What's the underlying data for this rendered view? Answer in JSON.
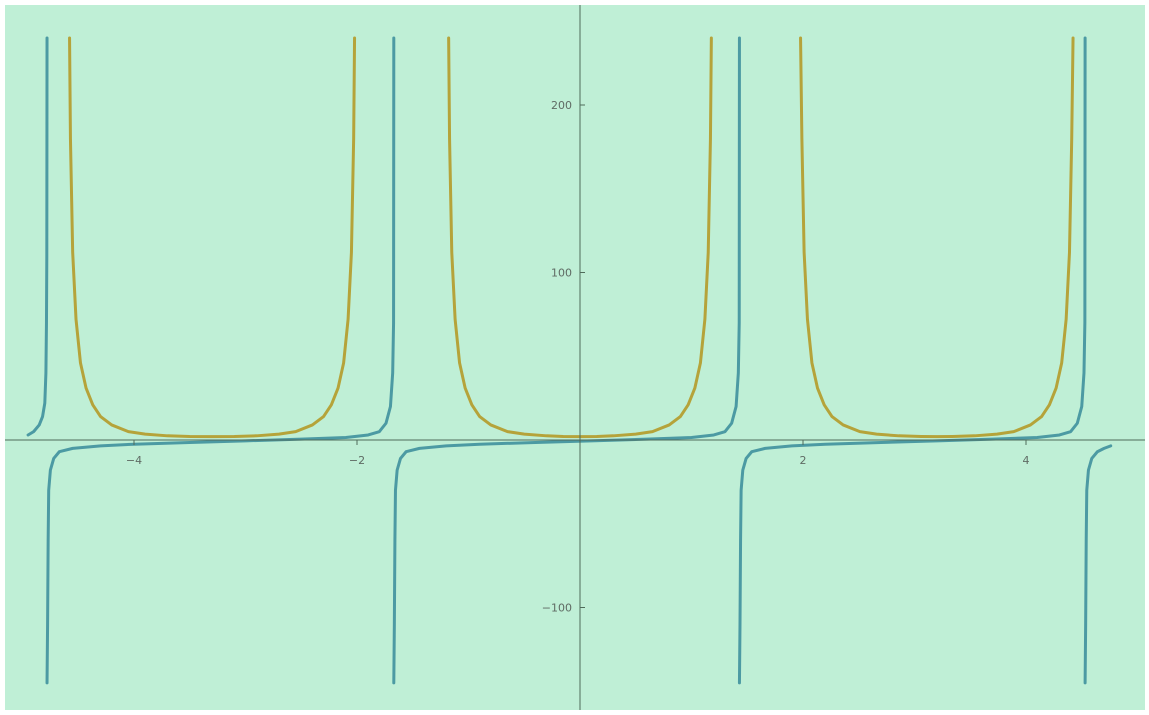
{
  "chart_data": {
    "type": "line",
    "title": "",
    "xlabel": "",
    "ylabel": "",
    "xlim": [
      -5.0,
      5.0
    ],
    "ylim": [
      -145,
      245
    ],
    "x_ticks": [
      -4,
      -2,
      2,
      4
    ],
    "y_ticks": [
      -100,
      100,
      200
    ],
    "tick_labels_x": [
      "−4",
      "−2",
      "2",
      "4"
    ],
    "tick_labels_y": [
      "−100",
      "100",
      "200"
    ],
    "grid": false,
    "legend": "none",
    "background_color": "#bfefd6",
    "series": [
      {
        "color": "#b5a33a",
        "points": [
          [
            -4.578,
            240
          ],
          [
            -4.57,
            180
          ],
          [
            -4.55,
            112
          ],
          [
            -4.52,
            72
          ],
          [
            -4.48,
            46
          ],
          [
            -4.43,
            31
          ],
          [
            -4.37,
            21
          ],
          [
            -4.3,
            14
          ],
          [
            -4.2,
            9
          ],
          [
            -4.05,
            5
          ],
          [
            -3.9,
            3.5
          ],
          [
            -3.7,
            2.5
          ],
          [
            -3.5,
            2.1
          ],
          [
            -3.3,
            2.0
          ],
          [
            -3.1,
            2.1
          ],
          [
            -2.9,
            2.5
          ],
          [
            -2.7,
            3.5
          ],
          [
            -2.55,
            5
          ],
          [
            -2.4,
            9
          ],
          [
            -2.3,
            14
          ],
          [
            -2.23,
            21
          ],
          [
            -2.17,
            31
          ],
          [
            -2.12,
            46
          ],
          [
            -2.08,
            72
          ],
          [
            -2.05,
            112
          ],
          [
            -2.03,
            180
          ],
          [
            -2.022,
            240
          ]
        ]
      },
      {
        "color": "#b5a33a",
        "points": [
          [
            -1.178,
            240
          ],
          [
            -1.17,
            180
          ],
          [
            -1.15,
            112
          ],
          [
            -1.12,
            72
          ],
          [
            -1.08,
            46
          ],
          [
            -1.03,
            31
          ],
          [
            -0.97,
            21
          ],
          [
            -0.9,
            14
          ],
          [
            -0.8,
            9
          ],
          [
            -0.65,
            5
          ],
          [
            -0.5,
            3.5
          ],
          [
            -0.3,
            2.5
          ],
          [
            -0.15,
            2.1
          ],
          [
            0.0,
            2.0
          ],
          [
            0.15,
            2.1
          ],
          [
            0.3,
            2.5
          ],
          [
            0.5,
            3.5
          ],
          [
            0.65,
            5
          ],
          [
            0.8,
            9
          ],
          [
            0.9,
            14
          ],
          [
            0.97,
            21
          ],
          [
            1.03,
            31
          ],
          [
            1.08,
            46
          ],
          [
            1.12,
            72
          ],
          [
            1.15,
            112
          ],
          [
            1.17,
            180
          ],
          [
            1.178,
            240
          ]
        ]
      },
      {
        "color": "#b5a33a",
        "points": [
          [
            1.978,
            240
          ],
          [
            1.99,
            180
          ],
          [
            2.01,
            112
          ],
          [
            2.04,
            72
          ],
          [
            2.08,
            46
          ],
          [
            2.13,
            31
          ],
          [
            2.19,
            21
          ],
          [
            2.26,
            14
          ],
          [
            2.36,
            9
          ],
          [
            2.51,
            5
          ],
          [
            2.66,
            3.5
          ],
          [
            2.86,
            2.5
          ],
          [
            3.06,
            2.1
          ],
          [
            3.2,
            2.0
          ],
          [
            3.34,
            2.1
          ],
          [
            3.54,
            2.5
          ],
          [
            3.74,
            3.5
          ],
          [
            3.89,
            5
          ],
          [
            4.04,
            9
          ],
          [
            4.14,
            14
          ],
          [
            4.21,
            21
          ],
          [
            4.27,
            31
          ],
          [
            4.32,
            46
          ],
          [
            4.36,
            72
          ],
          [
            4.39,
            112
          ],
          [
            4.41,
            180
          ],
          [
            4.422,
            240
          ]
        ]
      },
      {
        "color": "#4c9aa3",
        "points": [
          [
            -4.95,
            3
          ],
          [
            -4.9,
            5
          ],
          [
            -4.85,
            9
          ],
          [
            -4.82,
            14
          ],
          [
            -4.8,
            22
          ],
          [
            -4.79,
            40
          ],
          [
            -4.785,
            70
          ],
          [
            -4.782,
            110
          ],
          [
            -4.78,
            240
          ]
        ]
      },
      {
        "color": "#4c9aa3",
        "points": [
          [
            -4.78,
            -145
          ],
          [
            -4.775,
            -110
          ],
          [
            -4.77,
            -60
          ],
          [
            -4.765,
            -30
          ],
          [
            -4.75,
            -18
          ],
          [
            -4.72,
            -11
          ],
          [
            -4.67,
            -7
          ],
          [
            -4.55,
            -5
          ],
          [
            -4.3,
            -3.5
          ],
          [
            -4.0,
            -2.5
          ],
          [
            -3.5,
            -1.5
          ],
          [
            -3.0,
            -0.5
          ],
          [
            -2.5,
            0.5
          ],
          [
            -2.1,
            1.5
          ],
          [
            -1.9,
            3
          ],
          [
            -1.8,
            5
          ],
          [
            -1.74,
            10
          ],
          [
            -1.7,
            20
          ],
          [
            -1.68,
            40
          ],
          [
            -1.672,
            70
          ],
          [
            -1.67,
            240
          ]
        ]
      },
      {
        "color": "#4c9aa3",
        "points": [
          [
            -1.67,
            -145
          ],
          [
            -1.665,
            -110
          ],
          [
            -1.66,
            -60
          ],
          [
            -1.655,
            -30
          ],
          [
            -1.64,
            -18
          ],
          [
            -1.61,
            -11
          ],
          [
            -1.56,
            -7
          ],
          [
            -1.44,
            -5
          ],
          [
            -1.2,
            -3.5
          ],
          [
            -0.9,
            -2.5
          ],
          [
            -0.4,
            -1.5
          ],
          [
            0.1,
            -0.5
          ],
          [
            0.6,
            0.5
          ],
          [
            1.0,
            1.5
          ],
          [
            1.2,
            3
          ],
          [
            1.3,
            5
          ],
          [
            1.36,
            10
          ],
          [
            1.4,
            20
          ],
          [
            1.42,
            40
          ],
          [
            1.428,
            70
          ],
          [
            1.43,
            240
          ]
        ]
      },
      {
        "color": "#4c9aa3",
        "points": [
          [
            1.43,
            -145
          ],
          [
            1.435,
            -110
          ],
          [
            1.44,
            -60
          ],
          [
            1.445,
            -30
          ],
          [
            1.46,
            -18
          ],
          [
            1.49,
            -11
          ],
          [
            1.54,
            -7
          ],
          [
            1.66,
            -5
          ],
          [
            1.9,
            -3.5
          ],
          [
            2.2,
            -2.5
          ],
          [
            2.7,
            -1.5
          ],
          [
            3.2,
            -0.5
          ],
          [
            3.7,
            0.5
          ],
          [
            4.1,
            1.5
          ],
          [
            4.3,
            3
          ],
          [
            4.4,
            5
          ],
          [
            4.46,
            10
          ],
          [
            4.5,
            20
          ],
          [
            4.52,
            40
          ],
          [
            4.528,
            70
          ],
          [
            4.53,
            240
          ]
        ]
      },
      {
        "color": "#4c9aa3",
        "points": [
          [
            4.53,
            -145
          ],
          [
            4.535,
            -110
          ],
          [
            4.54,
            -60
          ],
          [
            4.545,
            -30
          ],
          [
            4.56,
            -18
          ],
          [
            4.59,
            -11
          ],
          [
            4.64,
            -7
          ],
          [
            4.7,
            -5
          ],
          [
            4.76,
            -3.5
          ]
        ]
      }
    ]
  }
}
